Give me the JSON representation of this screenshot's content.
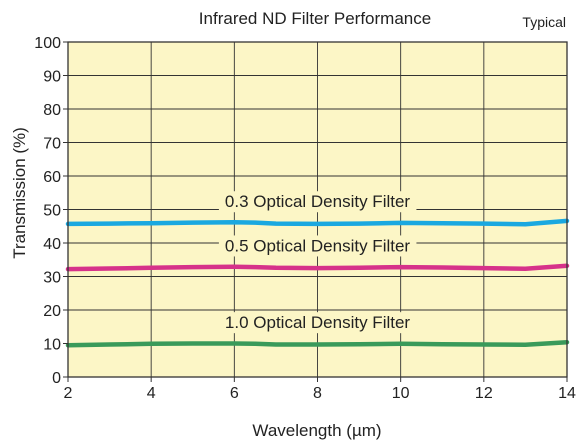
{
  "chart_data": {
    "type": "line",
    "title": "Infrared ND Filter Performance",
    "subtitle": "Typical",
    "xlabel": "Wavelength (µm)",
    "ylabel": "Transmission (%)",
    "xlim": [
      2,
      14
    ],
    "ylim": [
      0,
      100
    ],
    "xticks": [
      2,
      4,
      6,
      8,
      10,
      12,
      14
    ],
    "yticks": [
      0,
      10,
      20,
      30,
      40,
      50,
      60,
      70,
      80,
      90,
      100
    ],
    "grid": true,
    "background_color": "#fcf6c6",
    "series": [
      {
        "name": "0.3 Optical Density Filter",
        "color": "#1aa8e0",
        "x": [
          2,
          3,
          4,
          5,
          6,
          6.5,
          7,
          8,
          9,
          10,
          11,
          12,
          13,
          14
        ],
        "y": [
          45.7,
          45.8,
          45.9,
          46.1,
          46.2,
          46.1,
          45.8,
          45.7,
          45.8,
          46.0,
          45.9,
          45.8,
          45.6,
          46.6
        ]
      },
      {
        "name": "0.5 Optical Density Filter",
        "color": "#d6328a",
        "x": [
          2,
          3,
          4,
          5,
          6,
          6.5,
          7,
          8,
          9,
          10,
          11,
          12,
          13,
          14
        ],
        "y": [
          32.2,
          32.4,
          32.6,
          32.8,
          32.9,
          32.8,
          32.6,
          32.5,
          32.6,
          32.8,
          32.7,
          32.5,
          32.3,
          33.2
        ]
      },
      {
        "name": "1.0 Optical Density Filter",
        "color": "#3a9a5a",
        "x": [
          2,
          3,
          4,
          5,
          6,
          6.5,
          7,
          8,
          9,
          10,
          11,
          12,
          13,
          14
        ],
        "y": [
          9.5,
          9.7,
          9.9,
          10.0,
          10.0,
          9.9,
          9.7,
          9.7,
          9.8,
          9.9,
          9.8,
          9.7,
          9.6,
          10.4
        ]
      }
    ],
    "annotations": [
      {
        "text": "0.3 Optical Density Filter",
        "series": 0
      },
      {
        "text": "0.5 Optical Density Filter",
        "series": 1
      },
      {
        "text": "1.0 Optical Density Filter",
        "series": 2
      }
    ]
  }
}
